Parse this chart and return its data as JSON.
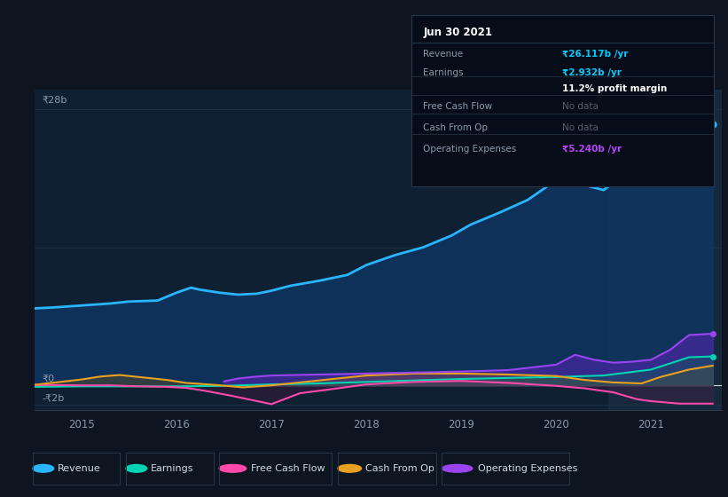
{
  "background_color": "#0d1520",
  "chart_area_color": "#0f2033",
  "grid_color": "#1e3248",
  "text_color": "#8a9aaa",
  "white_color": "#ffffff",
  "ylim": [
    -2.5,
    30
  ],
  "y28b_label": "₹28b",
  "y0_label": "₹0",
  "ym2b_label": "-₹2b",
  "xtick_labels": [
    "2015",
    "2016",
    "2017",
    "2018",
    "2019",
    "2020",
    "2021"
  ],
  "xtick_positions": [
    2015,
    2016,
    2017,
    2018,
    2019,
    2020,
    2021
  ],
  "xmin": 2014.5,
  "xmax": 2021.75,
  "revenue_color": "#29b5ff",
  "earnings_color": "#00d4b4",
  "fcf_color": "#ff4aaa",
  "cashfromop_color": "#e8a020",
  "opex_color": "#9944ee",
  "revenue_fill_color": "#0e3560",
  "highlight_shade": "#17293d",
  "info_box_bg": "#070d18",
  "info_box_border": "#283848",
  "revenue_value_color": "#00ccff",
  "earnings_value_color": "#00ccff",
  "opex_value_color": "#bb44ff",
  "legend_bg": "#0d1520",
  "legend_border": "#283848",
  "revenue_x": [
    2014.5,
    2014.7,
    2015.0,
    2015.3,
    2015.5,
    2015.8,
    2016.0,
    2016.15,
    2016.25,
    2016.45,
    2016.65,
    2016.85,
    2017.0,
    2017.2,
    2017.5,
    2017.8,
    2018.0,
    2018.3,
    2018.6,
    2018.9,
    2019.1,
    2019.4,
    2019.7,
    2020.0,
    2020.15,
    2020.3,
    2020.5,
    2020.7,
    2020.9,
    2021.1,
    2021.3,
    2021.5,
    2021.65
  ],
  "revenue_y": [
    7.8,
    7.9,
    8.1,
    8.3,
    8.5,
    8.6,
    9.4,
    9.9,
    9.7,
    9.4,
    9.2,
    9.3,
    9.6,
    10.1,
    10.6,
    11.2,
    12.2,
    13.2,
    14.0,
    15.2,
    16.3,
    17.5,
    18.8,
    20.8,
    21.2,
    20.3,
    19.8,
    21.2,
    21.8,
    23.0,
    24.5,
    26.2,
    26.5
  ],
  "earnings_x": [
    2014.5,
    2015.0,
    2015.5,
    2016.0,
    2016.5,
    2017.0,
    2017.5,
    2018.0,
    2018.5,
    2019.0,
    2019.5,
    2020.0,
    2020.5,
    2021.0,
    2021.4,
    2021.65
  ],
  "earnings_y": [
    -0.15,
    -0.1,
    -0.1,
    -0.1,
    -0.05,
    0.1,
    0.2,
    0.35,
    0.5,
    0.65,
    0.75,
    0.85,
    1.0,
    1.6,
    2.85,
    2.93
  ],
  "fcf_x": [
    2014.5,
    2015.0,
    2015.3,
    2015.6,
    2015.9,
    2016.1,
    2016.3,
    2016.55,
    2016.8,
    2017.0,
    2017.3,
    2017.7,
    2018.0,
    2018.5,
    2019.0,
    2019.5,
    2020.0,
    2020.3,
    2020.6,
    2020.85,
    2021.0,
    2021.3,
    2021.65
  ],
  "fcf_y": [
    0.05,
    0.0,
    0.0,
    -0.1,
    -0.15,
    -0.25,
    -0.55,
    -1.0,
    -1.5,
    -1.9,
    -0.8,
    -0.3,
    0.1,
    0.35,
    0.45,
    0.25,
    -0.05,
    -0.3,
    -0.7,
    -1.4,
    -1.6,
    -1.85,
    -1.85
  ],
  "cashfromop_x": [
    2014.5,
    2015.0,
    2015.2,
    2015.4,
    2015.6,
    2015.9,
    2016.1,
    2016.4,
    2016.7,
    2017.0,
    2017.5,
    2018.0,
    2018.5,
    2019.0,
    2019.5,
    2020.0,
    2020.3,
    2020.6,
    2020.9,
    2021.1,
    2021.4,
    2021.65
  ],
  "cashfromop_y": [
    0.05,
    0.6,
    0.9,
    1.05,
    0.85,
    0.55,
    0.25,
    0.05,
    -0.2,
    0.0,
    0.5,
    1.0,
    1.2,
    1.2,
    1.1,
    0.95,
    0.55,
    0.3,
    0.2,
    0.85,
    1.6,
    2.0
  ],
  "opex_x": [
    2016.5,
    2016.65,
    2016.85,
    2017.0,
    2017.5,
    2018.0,
    2018.5,
    2019.0,
    2019.5,
    2020.0,
    2020.2,
    2020.4,
    2020.6,
    2020.8,
    2021.0,
    2021.2,
    2021.4,
    2021.65
  ],
  "opex_y": [
    0.4,
    0.7,
    0.9,
    1.0,
    1.1,
    1.2,
    1.3,
    1.4,
    1.55,
    2.1,
    3.1,
    2.6,
    2.3,
    2.4,
    2.6,
    3.6,
    5.1,
    5.24
  ],
  "highlight_start": 2020.55,
  "highlight_end": 2021.75,
  "info_box_date": "Jun 30 2021",
  "info_box_rows": [
    {
      "label": "Revenue",
      "value": "₹26.117b /yr",
      "value_color": "#00ccff",
      "label_color": "#8a9aaa",
      "divider_below": true
    },
    {
      "label": "Earnings",
      "value": "₹2.932b /yr",
      "value_color": "#00ccff",
      "label_color": "#8a9aaa",
      "divider_below": false
    },
    {
      "label": "",
      "value": "11.2% profit margin",
      "value_color": "#ffffff",
      "label_color": "#8a9aaa",
      "divider_below": true
    },
    {
      "label": "Free Cash Flow",
      "value": "No data",
      "value_color": "#555f6a",
      "label_color": "#8a9aaa",
      "divider_below": true
    },
    {
      "label": "Cash From Op",
      "value": "No data",
      "value_color": "#555f6a",
      "label_color": "#8a9aaa",
      "divider_below": true
    },
    {
      "label": "Operating Expenses",
      "value": "₹5.240b /yr",
      "value_color": "#bb44ff",
      "label_color": "#8a9aaa",
      "divider_below": false
    }
  ],
  "legend_items": [
    {
      "label": "Revenue",
      "color": "#29b5ff"
    },
    {
      "label": "Earnings",
      "color": "#00d4b4"
    },
    {
      "label": "Free Cash Flow",
      "color": "#ff4aaa"
    },
    {
      "label": "Cash From Op",
      "color": "#e8a020"
    },
    {
      "label": "Operating Expenses",
      "color": "#9944ee"
    }
  ]
}
